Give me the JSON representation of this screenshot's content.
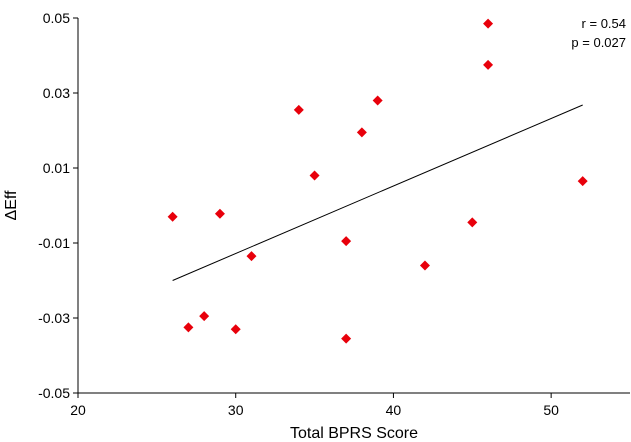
{
  "chart_data": {
    "type": "scatter",
    "title": "",
    "xlabel": "Total BPRS Score",
    "ylabel": "ΔEff",
    "xlim": [
      20,
      55
    ],
    "ylim": [
      -0.05,
      0.05
    ],
    "xticks": [
      20,
      30,
      40,
      50
    ],
    "yticks": [
      0.05,
      0.03,
      0.01,
      -0.01,
      -0.03,
      -0.05
    ],
    "xtick_labels": [
      "20",
      "30",
      "40",
      "50"
    ],
    "ytick_labels": [
      "0.05",
      "0.03",
      "0.01",
      "-0.01",
      "-0.03",
      "-0.05"
    ],
    "grid": false,
    "legend": "none",
    "marker_color": "#e8000b",
    "marker": "diamond",
    "points": [
      {
        "x": 26,
        "y": -0.003
      },
      {
        "x": 27,
        "y": -0.0325
      },
      {
        "x": 28,
        "y": -0.0295
      },
      {
        "x": 29,
        "y": -0.0022
      },
      {
        "x": 30,
        "y": -0.033
      },
      {
        "x": 31,
        "y": -0.0135
      },
      {
        "x": 34,
        "y": 0.0255
      },
      {
        "x": 35,
        "y": 0.008
      },
      {
        "x": 37,
        "y": -0.0095
      },
      {
        "x": 37,
        "y": -0.0355
      },
      {
        "x": 38,
        "y": 0.0195
      },
      {
        "x": 39,
        "y": 0.028
      },
      {
        "x": 42,
        "y": -0.016
      },
      {
        "x": 45,
        "y": -0.0045
      },
      {
        "x": 46,
        "y": 0.0485
      },
      {
        "x": 46,
        "y": 0.0375
      },
      {
        "x": 52,
        "y": 0.0065
      }
    ],
    "trendline": {
      "x": [
        26,
        52
      ],
      "y": [
        -0.02,
        0.0268
      ],
      "color": "#000000"
    },
    "annotations": [
      "r = 0.54",
      "p = 0.027"
    ]
  }
}
